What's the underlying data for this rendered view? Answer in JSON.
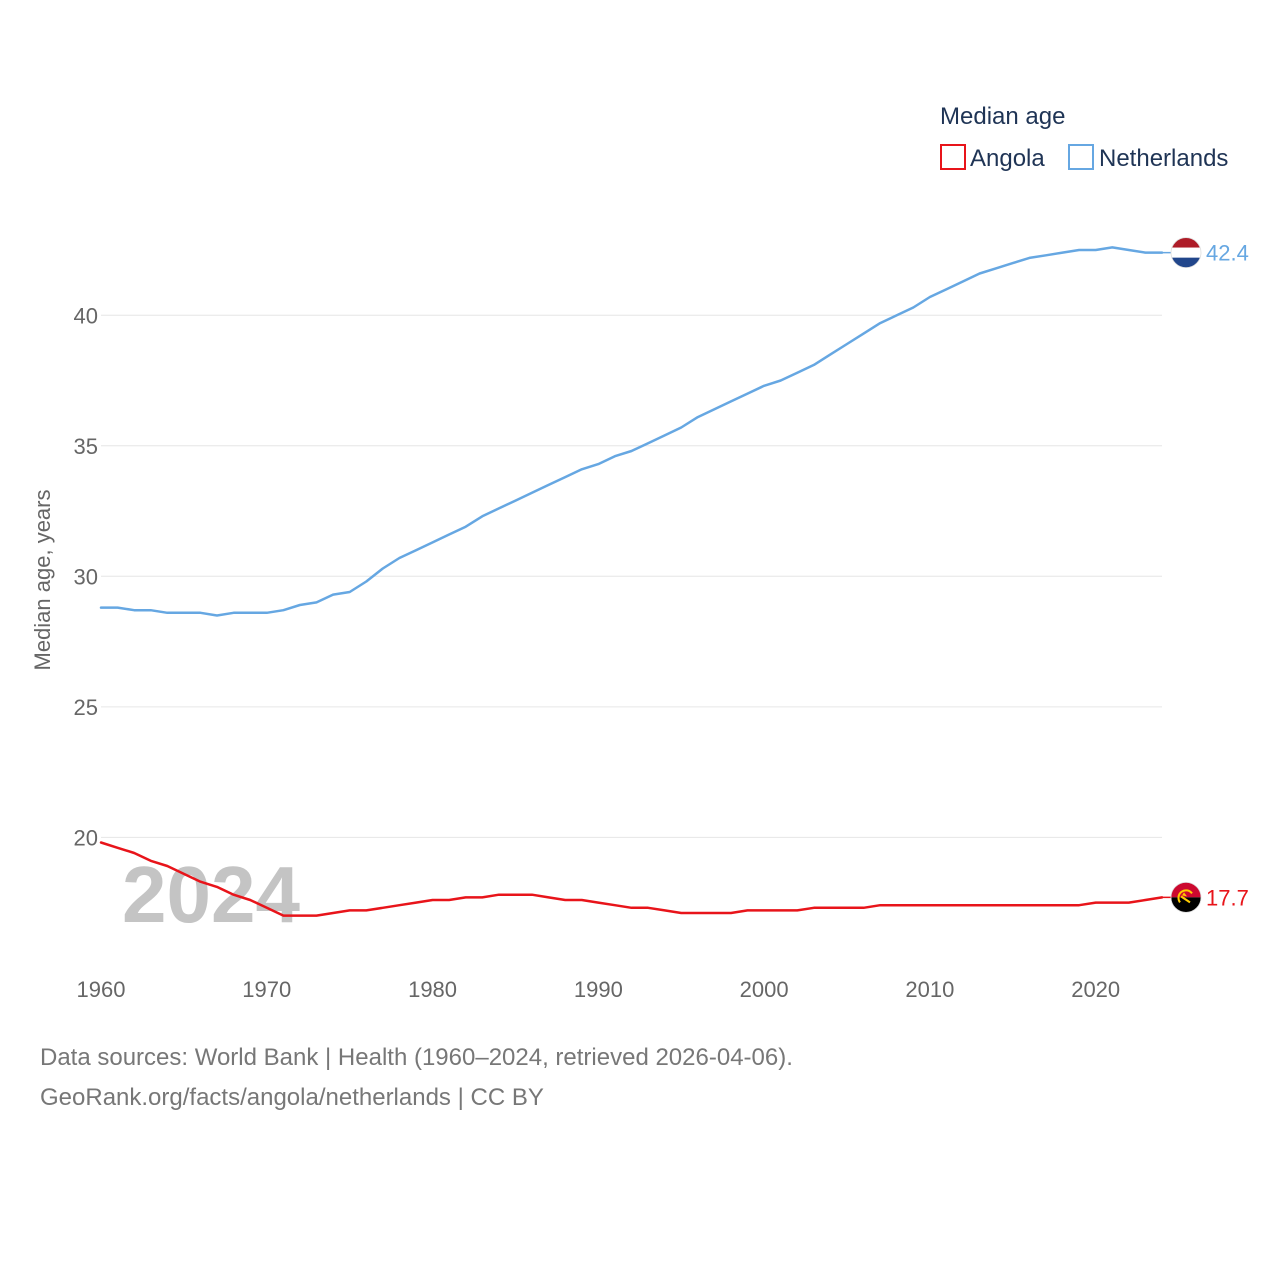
{
  "chart_data": {
    "type": "line",
    "title": "Median age",
    "xlabel": "",
    "ylabel": "Median age, years",
    "xlim": [
      1960,
      2024
    ],
    "ylim": [
      15.3,
      44.8
    ],
    "yticks": [
      20,
      25,
      30,
      35,
      40
    ],
    "xticks": [
      1960,
      1970,
      1980,
      1990,
      2000,
      2010,
      2020
    ],
    "grid": true,
    "legend": "top-right",
    "year_watermark": "2024",
    "x": [
      1960,
      1961,
      1962,
      1963,
      1964,
      1965,
      1966,
      1967,
      1968,
      1969,
      1970,
      1971,
      1972,
      1973,
      1974,
      1975,
      1976,
      1977,
      1978,
      1979,
      1980,
      1981,
      1982,
      1983,
      1984,
      1985,
      1986,
      1987,
      1988,
      1989,
      1990,
      1991,
      1992,
      1993,
      1994,
      1995,
      1996,
      1997,
      1998,
      1999,
      2000,
      2001,
      2002,
      2003,
      2004,
      2005,
      2006,
      2007,
      2008,
      2009,
      2010,
      2011,
      2012,
      2013,
      2014,
      2015,
      2016,
      2017,
      2018,
      2019,
      2020,
      2021,
      2022,
      2023,
      2024
    ],
    "series": [
      {
        "name": "Angola",
        "color": "#e8141a",
        "end_label": "17.7",
        "flag": "angola-flag-icon",
        "values": [
          19.8,
          19.6,
          19.4,
          19.1,
          18.9,
          18.6,
          18.3,
          18.1,
          17.8,
          17.6,
          17.3,
          17.0,
          17.0,
          17.0,
          17.1,
          17.2,
          17.2,
          17.3,
          17.4,
          17.5,
          17.6,
          17.6,
          17.7,
          17.7,
          17.8,
          17.8,
          17.8,
          17.7,
          17.6,
          17.6,
          17.5,
          17.4,
          17.3,
          17.3,
          17.2,
          17.1,
          17.1,
          17.1,
          17.1,
          17.2,
          17.2,
          17.2,
          17.2,
          17.3,
          17.3,
          17.3,
          17.3,
          17.4,
          17.4,
          17.4,
          17.4,
          17.4,
          17.4,
          17.4,
          17.4,
          17.4,
          17.4,
          17.4,
          17.4,
          17.4,
          17.5,
          17.5,
          17.5,
          17.6,
          17.7
        ]
      },
      {
        "name": "Netherlands",
        "color": "#66a7e2",
        "end_label": "42.4",
        "flag": "netherlands-flag-icon",
        "values": [
          28.8,
          28.8,
          28.7,
          28.7,
          28.6,
          28.6,
          28.6,
          28.5,
          28.6,
          28.6,
          28.6,
          28.7,
          28.9,
          29.0,
          29.3,
          29.4,
          29.8,
          30.3,
          30.7,
          31.0,
          31.3,
          31.6,
          31.9,
          32.3,
          32.6,
          32.9,
          33.2,
          33.5,
          33.8,
          34.1,
          34.3,
          34.6,
          34.8,
          35.1,
          35.4,
          35.7,
          36.1,
          36.4,
          36.7,
          37.0,
          37.3,
          37.5,
          37.8,
          38.1,
          38.5,
          38.9,
          39.3,
          39.7,
          40.0,
          40.3,
          40.7,
          41.0,
          41.3,
          41.6,
          41.8,
          42.0,
          42.2,
          42.3,
          42.4,
          42.5,
          42.5,
          42.6,
          42.5,
          42.4,
          42.4
        ]
      }
    ]
  },
  "footer": {
    "source": "Data sources: World Bank | Health (1960–2024, retrieved 2026-04-06).",
    "url": "GeoRank.org/facts/angola/netherlands | CC BY"
  }
}
